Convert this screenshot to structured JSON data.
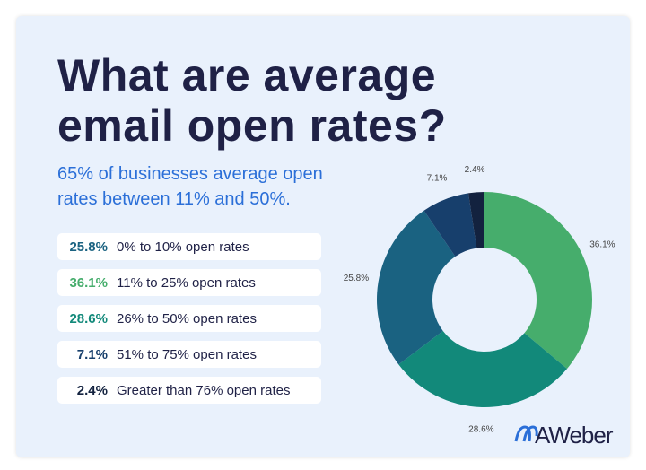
{
  "chart_data": {
    "type": "donut",
    "title": "What are average email open rates?",
    "subtitle": "65% of businesses average open rates between 11% and 50%.",
    "categories": [
      "11% to 25% open rates",
      "26% to 50% open rates",
      "0% to 10% open rates",
      "51% to 75% open rates",
      "Greater than 76% open rates"
    ],
    "values": [
      36.1,
      28.6,
      25.8,
      7.1,
      2.4
    ],
    "value_labels": [
      "36.1%",
      "28.6%",
      "25.8%",
      "7.1%",
      "2.4%"
    ],
    "colors": [
      "#46ad6c",
      "#12897a",
      "#1a6281",
      "#173f6c",
      "#13223f"
    ],
    "list_order": [
      2,
      0,
      1,
      3,
      4
    ],
    "brand": "AWeber"
  }
}
